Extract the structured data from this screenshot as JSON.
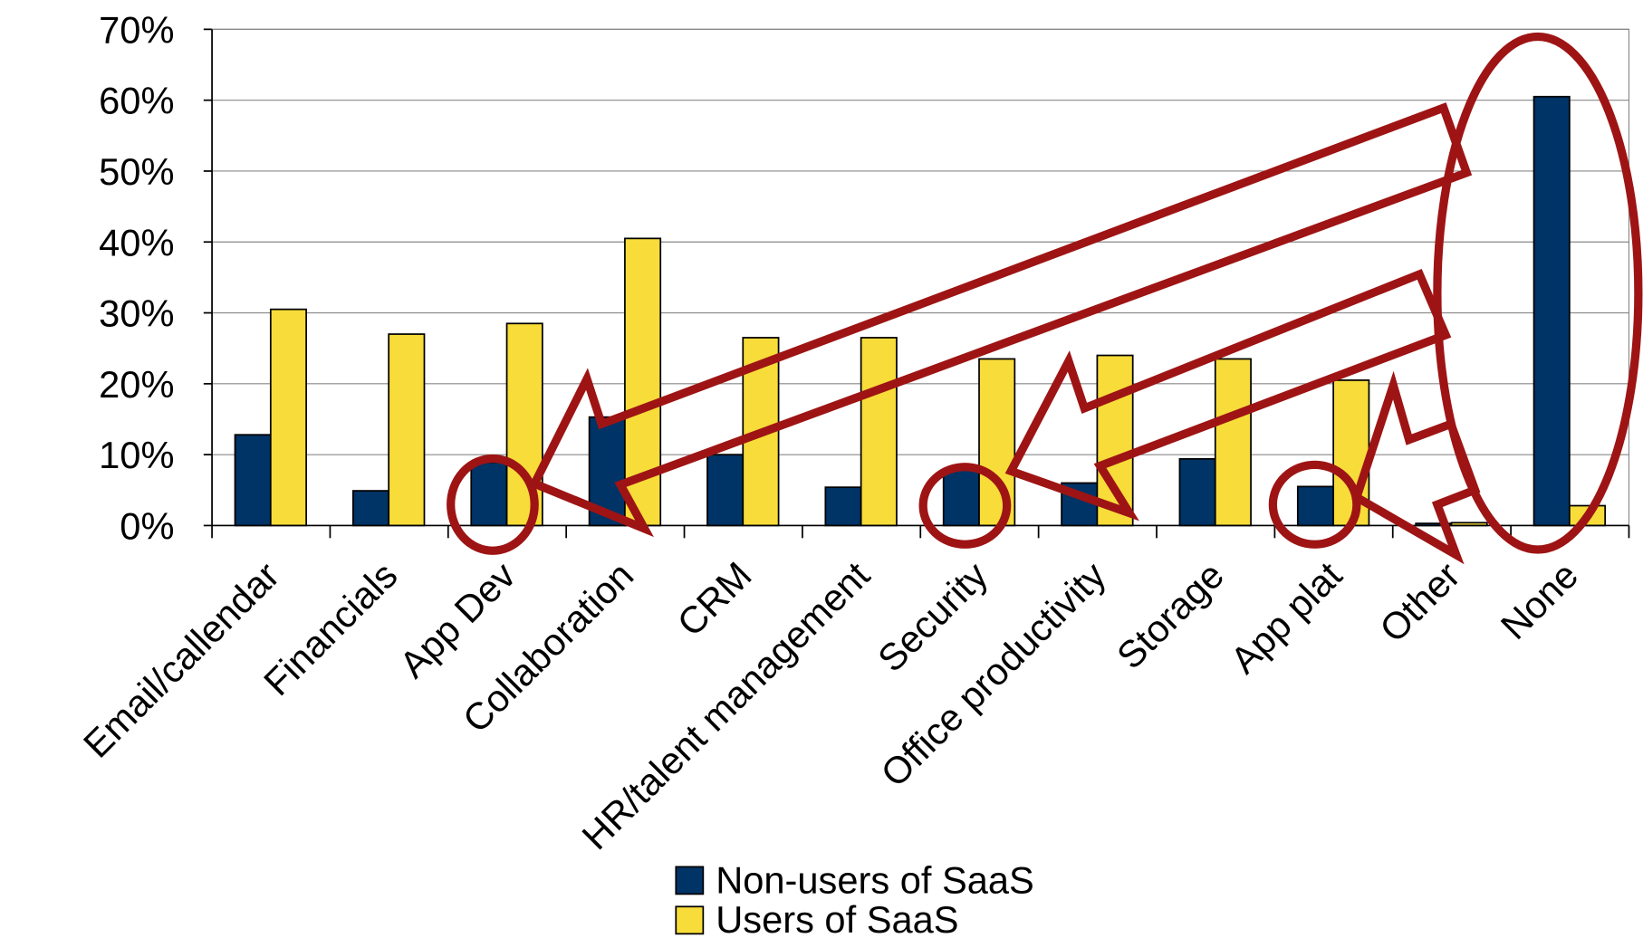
{
  "chart_data": {
    "type": "bar",
    "categories": [
      "Email/callendar",
      "Financials",
      "App Dev",
      "Collaboration",
      "CRM",
      "HR/talent management",
      "Security",
      "Office productivity",
      "Storage",
      "App plat",
      "Other",
      "None"
    ],
    "series": [
      {
        "name": "Non-users of SaaS",
        "color": "#003366",
        "values": [
          12.8,
          4.9,
          8.9,
          15.3,
          10,
          5.4,
          7.9,
          6,
          9.4,
          5.5,
          0.3,
          60.5
        ]
      },
      {
        "name": "Users of SaaS",
        "color": "#f7dc3a",
        "values": [
          30.5,
          27,
          28.5,
          40.5,
          26.5,
          26.5,
          23.5,
          24,
          23.5,
          20.5,
          0.4,
          2.8
        ]
      }
    ],
    "ylim": [
      0,
      70
    ],
    "yticks": [
      {
        "value": 0,
        "label": "0%"
      },
      {
        "value": 10,
        "label": "10%"
      },
      {
        "value": 20,
        "label": "20%"
      },
      {
        "value": 30,
        "label": "30%"
      },
      {
        "value": 40,
        "label": "40%"
      },
      {
        "value": 50,
        "label": "50%"
      },
      {
        "value": 60,
        "label": "60%"
      },
      {
        "value": 70,
        "label": "70%"
      }
    ],
    "grid": true,
    "legend": "bottom"
  }
}
